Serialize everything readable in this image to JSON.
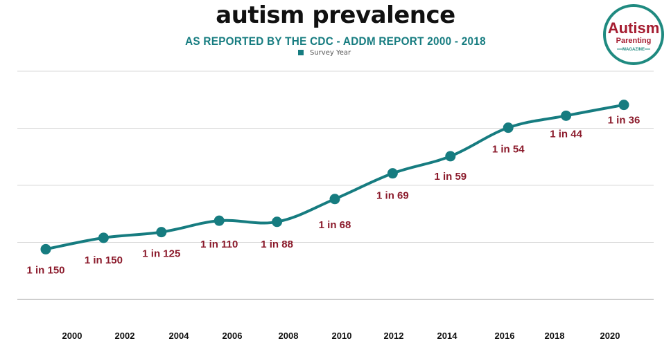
{
  "chart_data": {
    "type": "line",
    "title": "autism prevalence",
    "subtitle": "AS REPORTED BY THE CDC - ADDM REPORT 2000 - 2018",
    "legend": {
      "entries": [
        "Survey Year"
      ],
      "placement": "top-center"
    },
    "xlabel": "",
    "ylabel": "",
    "grid": true,
    "ylim": [
      0,
      4
    ],
    "gridlines": [
      0,
      1,
      2,
      3,
      4
    ],
    "categories": [
      "2000",
      "2002",
      "2004",
      "2006",
      "2008",
      "2010",
      "2012",
      "2014",
      "2016",
      "2018",
      "2020"
    ],
    "series": [
      {
        "name": "Survey Year",
        "values": [
          0.88,
          1.08,
          1.18,
          1.38,
          1.36,
          1.76,
          2.21,
          2.51,
          3.01,
          3.22,
          3.41
        ],
        "labels": [
          "1 in 150",
          "1 in 150",
          "1 in 125",
          "1 in 110",
          "1 in 88",
          "1 in 68",
          "1 in 69",
          "1 in 59",
          "1 in 54",
          "1 in 44",
          "1 in 36"
        ]
      }
    ],
    "colors": {
      "line": "#167c80",
      "label": "#8b1a2b",
      "grid": "#d9d9d9"
    }
  },
  "logo": {
    "line1": "Autism",
    "line2": "Parenting",
    "line3": "MAGAZINE",
    "ring_color": "#1f8a80",
    "text_color": "#a51c30"
  }
}
